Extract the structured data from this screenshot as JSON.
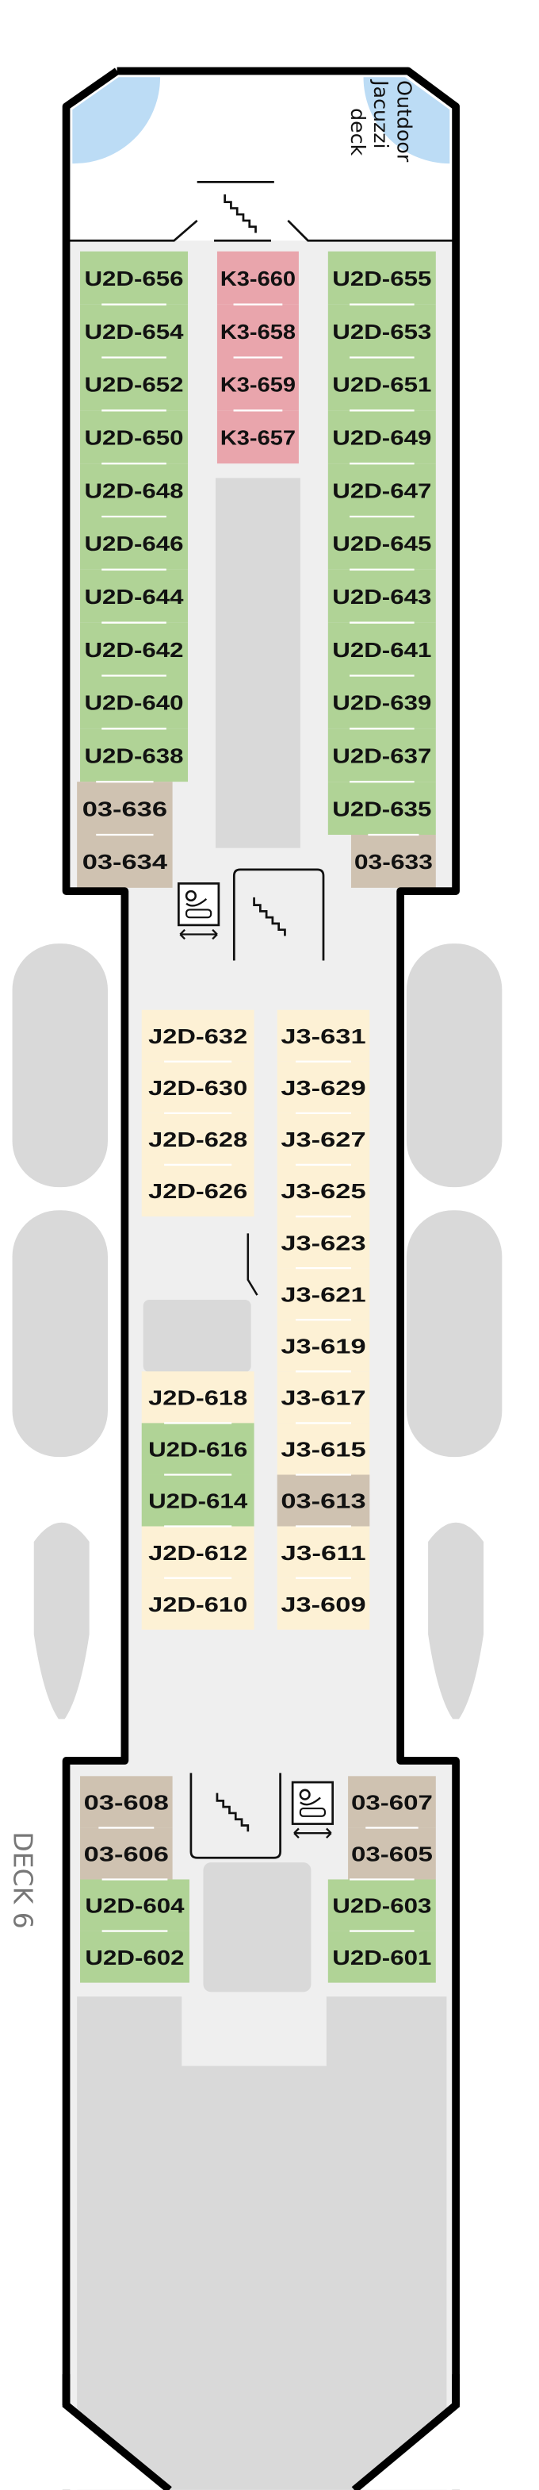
{
  "deck_label": "DECK 6",
  "area_label": [
    "Outdoor",
    "Jacuzzi",
    "deck"
  ],
  "colors": {
    "U2D": "#b0d396",
    "K3": "#e9a5ac",
    "O3": "#cfc2b1",
    "J": "#fdf1d5",
    "corridor": "#efefef",
    "service": "#d9d9d9",
    "jacuzzi": "#bcdcf5",
    "hull": "#000000"
  },
  "icons": [
    "stairs-icon",
    "elevator-icon"
  ],
  "aft": {
    "left": [
      {
        "id": "U2D-656",
        "type": "U2D"
      },
      {
        "id": "U2D-654",
        "type": "U2D"
      },
      {
        "id": "U2D-652",
        "type": "U2D"
      },
      {
        "id": "U2D-650",
        "type": "U2D"
      },
      {
        "id": "U2D-648",
        "type": "U2D"
      },
      {
        "id": "U2D-646",
        "type": "U2D"
      },
      {
        "id": "U2D-644",
        "type": "U2D"
      },
      {
        "id": "U2D-642",
        "type": "U2D"
      },
      {
        "id": "U2D-640",
        "type": "U2D"
      },
      {
        "id": "U2D-638",
        "type": "U2D"
      },
      {
        "id": "03-636",
        "type": "O3"
      },
      {
        "id": "03-634",
        "type": "O3"
      }
    ],
    "center": [
      {
        "id": "K3-660",
        "type": "K3"
      },
      {
        "id": "K3-658",
        "type": "K3"
      },
      {
        "id": "K3-659",
        "type": "K3"
      },
      {
        "id": "K3-657",
        "type": "K3"
      }
    ],
    "right": [
      {
        "id": "U2D-655",
        "type": "U2D"
      },
      {
        "id": "U2D-653",
        "type": "U2D"
      },
      {
        "id": "U2D-651",
        "type": "U2D"
      },
      {
        "id": "U2D-649",
        "type": "U2D"
      },
      {
        "id": "U2D-647",
        "type": "U2D"
      },
      {
        "id": "U2D-645",
        "type": "U2D"
      },
      {
        "id": "U2D-643",
        "type": "U2D"
      },
      {
        "id": "U2D-641",
        "type": "U2D"
      },
      {
        "id": "U2D-639",
        "type": "U2D"
      },
      {
        "id": "U2D-637",
        "type": "U2D"
      },
      {
        "id": "U2D-635",
        "type": "U2D"
      },
      {
        "id": "03-633",
        "type": "O3"
      }
    ]
  },
  "mid": {
    "left": [
      {
        "id": "J2D-632",
        "type": "J"
      },
      {
        "id": "J2D-630",
        "type": "J"
      },
      {
        "id": "J2D-628",
        "type": "J"
      },
      {
        "id": "J2D-626",
        "type": "J"
      },
      null,
      null,
      null,
      {
        "id": "J2D-618",
        "type": "J"
      },
      {
        "id": "U2D-616",
        "type": "U2D"
      },
      {
        "id": "U2D-614",
        "type": "U2D"
      },
      {
        "id": "J2D-612",
        "type": "J"
      },
      {
        "id": "J2D-610",
        "type": "J"
      }
    ],
    "right": [
      {
        "id": "J3-631",
        "type": "J"
      },
      {
        "id": "J3-629",
        "type": "J"
      },
      {
        "id": "J3-627",
        "type": "J"
      },
      {
        "id": "J3-625",
        "type": "J"
      },
      {
        "id": "J3-623",
        "type": "J"
      },
      {
        "id": "J3-621",
        "type": "J"
      },
      {
        "id": "J3-619",
        "type": "J"
      },
      {
        "id": "J3-617",
        "type": "J"
      },
      {
        "id": "J3-615",
        "type": "J"
      },
      {
        "id": "03-613",
        "type": "O3"
      },
      {
        "id": "J3-611",
        "type": "J"
      },
      {
        "id": "J3-609",
        "type": "J"
      }
    ]
  },
  "fwd": {
    "left": [
      {
        "id": "03-608",
        "type": "O3"
      },
      {
        "id": "03-606",
        "type": "O3"
      },
      {
        "id": "U2D-604",
        "type": "U2D"
      },
      {
        "id": "U2D-602",
        "type": "U2D"
      }
    ],
    "right": [
      {
        "id": "03-607",
        "type": "O3"
      },
      {
        "id": "03-605",
        "type": "O3"
      },
      {
        "id": "U2D-603",
        "type": "U2D"
      },
      {
        "id": "U2D-601",
        "type": "U2D"
      }
    ]
  }
}
